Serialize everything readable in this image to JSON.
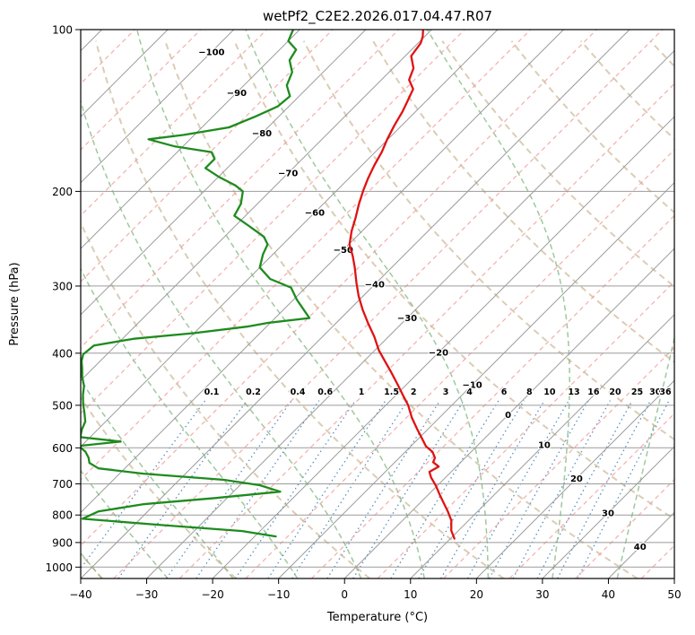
{
  "chart_data": {
    "type": "line",
    "variant": "skew_t_log_p_sounding",
    "title": "wetPf2_C2E2.2026.017.04.47.R07",
    "xlabel": "Temperature (°C)",
    "ylabel": "Pressure (hPa)",
    "x_range_c": [
      -40,
      50
    ],
    "pressure_range_hpa": [
      100,
      1050
    ],
    "skew_degrees": 45,
    "pressure_ticks": [
      100,
      200,
      300,
      400,
      500,
      600,
      700,
      800,
      900,
      1000
    ],
    "temperature_ticks": [
      -40,
      -30,
      -20,
      -10,
      0,
      10,
      20,
      30,
      40,
      50
    ],
    "isotherm_step_c": 5,
    "isotherm_labels_c": [
      -100,
      -90,
      -80,
      -70,
      -60,
      -50,
      -40,
      -30,
      -20,
      -10,
      0,
      10,
      20,
      30,
      40
    ],
    "mixing_ratio_lines_g_per_kg": [
      0.1,
      0.2,
      0.4,
      0.6,
      1,
      1.5,
      2,
      3,
      4,
      6,
      8,
      10,
      13,
      16,
      20,
      25,
      30,
      36
    ],
    "dry_adiabats_theta_c": [
      -40,
      -20,
      0,
      20,
      40,
      60,
      80,
      100,
      120,
      140,
      160,
      180,
      200
    ],
    "moist_adiabats_thetaw_c": [
      -40,
      -30,
      -20,
      -10,
      0,
      10,
      20,
      30,
      40
    ],
    "series": [
      {
        "name": "temperature",
        "color": "#e01212",
        "points_p_t": [
          [
            885,
            10.6
          ],
          [
            855,
            8.9
          ],
          [
            819,
            7.4
          ],
          [
            788,
            5.5
          ],
          [
            760,
            3.6
          ],
          [
            733,
            1.7
          ],
          [
            706,
            -0.2
          ],
          [
            681,
            -2.2
          ],
          [
            665,
            -3.3
          ],
          [
            650,
            -2.7
          ],
          [
            638,
            -4.2
          ],
          [
            626,
            -4.6
          ],
          [
            610,
            -5.9
          ],
          [
            596,
            -7.7
          ],
          [
            575,
            -9.6
          ],
          [
            554,
            -11.6
          ],
          [
            527,
            -14.2
          ],
          [
            500,
            -16.6
          ],
          [
            481,
            -18.7
          ],
          [
            457,
            -21.4
          ],
          [
            434,
            -24.2
          ],
          [
            414,
            -26.8
          ],
          [
            395,
            -29.4
          ],
          [
            373,
            -32.1
          ],
          [
            352,
            -35.1
          ],
          [
            332,
            -38.0
          ],
          [
            313,
            -40.7
          ],
          [
            296,
            -43.0
          ],
          [
            277,
            -45.6
          ],
          [
            264,
            -47.6
          ],
          [
            251,
            -49.9
          ],
          [
            237,
            -51.6
          ],
          [
            224,
            -53.0
          ],
          [
            211,
            -54.6
          ],
          [
            199,
            -56.0
          ],
          [
            189,
            -57.1
          ],
          [
            179,
            -58.1
          ],
          [
            169,
            -59.0
          ],
          [
            160,
            -60.1
          ],
          [
            151,
            -61.1
          ],
          [
            142,
            -62.0
          ],
          [
            136,
            -62.8
          ],
          [
            129,
            -63.8
          ],
          [
            124,
            -65.8
          ],
          [
            118,
            -66.9
          ],
          [
            112,
            -69.1
          ],
          [
            106,
            -69.6
          ],
          [
            103,
            -70.3
          ],
          [
            100,
            -71.3
          ]
        ]
      },
      {
        "name": "dewpoint",
        "color": "#1e8b1e",
        "points_p_t": [
          [
            877,
            -16.8
          ],
          [
            857,
            -22.7
          ],
          [
            835,
            -35.9
          ],
          [
            813,
            -48.8
          ],
          [
            788,
            -47.5
          ],
          [
            764,
            -41.8
          ],
          [
            744,
            -31.8
          ],
          [
            724,
            -22.9
          ],
          [
            704,
            -27.0
          ],
          [
            688,
            -33.2
          ],
          [
            670,
            -46.4
          ],
          [
            655,
            -54.0
          ],
          [
            640,
            -56.2
          ],
          [
            626,
            -57.1
          ],
          [
            610,
            -58.5
          ],
          [
            595,
            -60.4
          ],
          [
            584,
            -54.7
          ],
          [
            573,
            -61.5
          ],
          [
            555,
            -62.4
          ],
          [
            536,
            -63.1
          ],
          [
            517,
            -64.5
          ],
          [
            497,
            -66.1
          ],
          [
            478,
            -67.5
          ],
          [
            460,
            -68.7
          ],
          [
            443,
            -70.3
          ],
          [
            426,
            -71.7
          ],
          [
            414,
            -72.8
          ],
          [
            402,
            -73.6
          ],
          [
            387,
            -73.3
          ],
          [
            376,
            -68.3
          ],
          [
            367,
            -60.0
          ],
          [
            357,
            -53.0
          ],
          [
            351,
            -50.2
          ],
          [
            344,
            -44.8
          ],
          [
            335,
            -46.4
          ],
          [
            318,
            -49.5
          ],
          [
            302,
            -52.2
          ],
          [
            291,
            -56.7
          ],
          [
            277,
            -60.0
          ],
          [
            262,
            -61.5
          ],
          [
            251,
            -62.3
          ],
          [
            243,
            -64.0
          ],
          [
            232,
            -67.9
          ],
          [
            222,
            -71.7
          ],
          [
            211,
            -72.5
          ],
          [
            200,
            -74.1
          ],
          [
            195,
            -76.1
          ],
          [
            188,
            -79.9
          ],
          [
            181,
            -83.3
          ],
          [
            174,
            -83.3
          ],
          [
            169,
            -84.8
          ],
          [
            165,
            -91.2
          ],
          [
            160,
            -96.3
          ],
          [
            157,
            -91.6
          ],
          [
            152,
            -85.9
          ],
          [
            145,
            -83.5
          ],
          [
            139,
            -81.7
          ],
          [
            133,
            -81.4
          ],
          [
            127,
            -83.5
          ],
          [
            120,
            -84.7
          ],
          [
            114,
            -86.9
          ],
          [
            109,
            -87.5
          ],
          [
            105,
            -90.0
          ],
          [
            100,
            -91.0
          ]
        ]
      }
    ]
  },
  "colors": {
    "temperature_line": "#e01212",
    "dewpoint_line": "#1e8b1e",
    "isotherm_gray": "#9b9b9b",
    "isotherm_warm": "#f2a09c",
    "dry_adiabat": "#bfa479",
    "moist_adiabat": "#4f9e4f",
    "mixing_ratio": "#2e77b5",
    "label_cold": "#2c7bb8",
    "label_warm": "#c43c3c",
    "label_zero": "#8a8a8a"
  }
}
